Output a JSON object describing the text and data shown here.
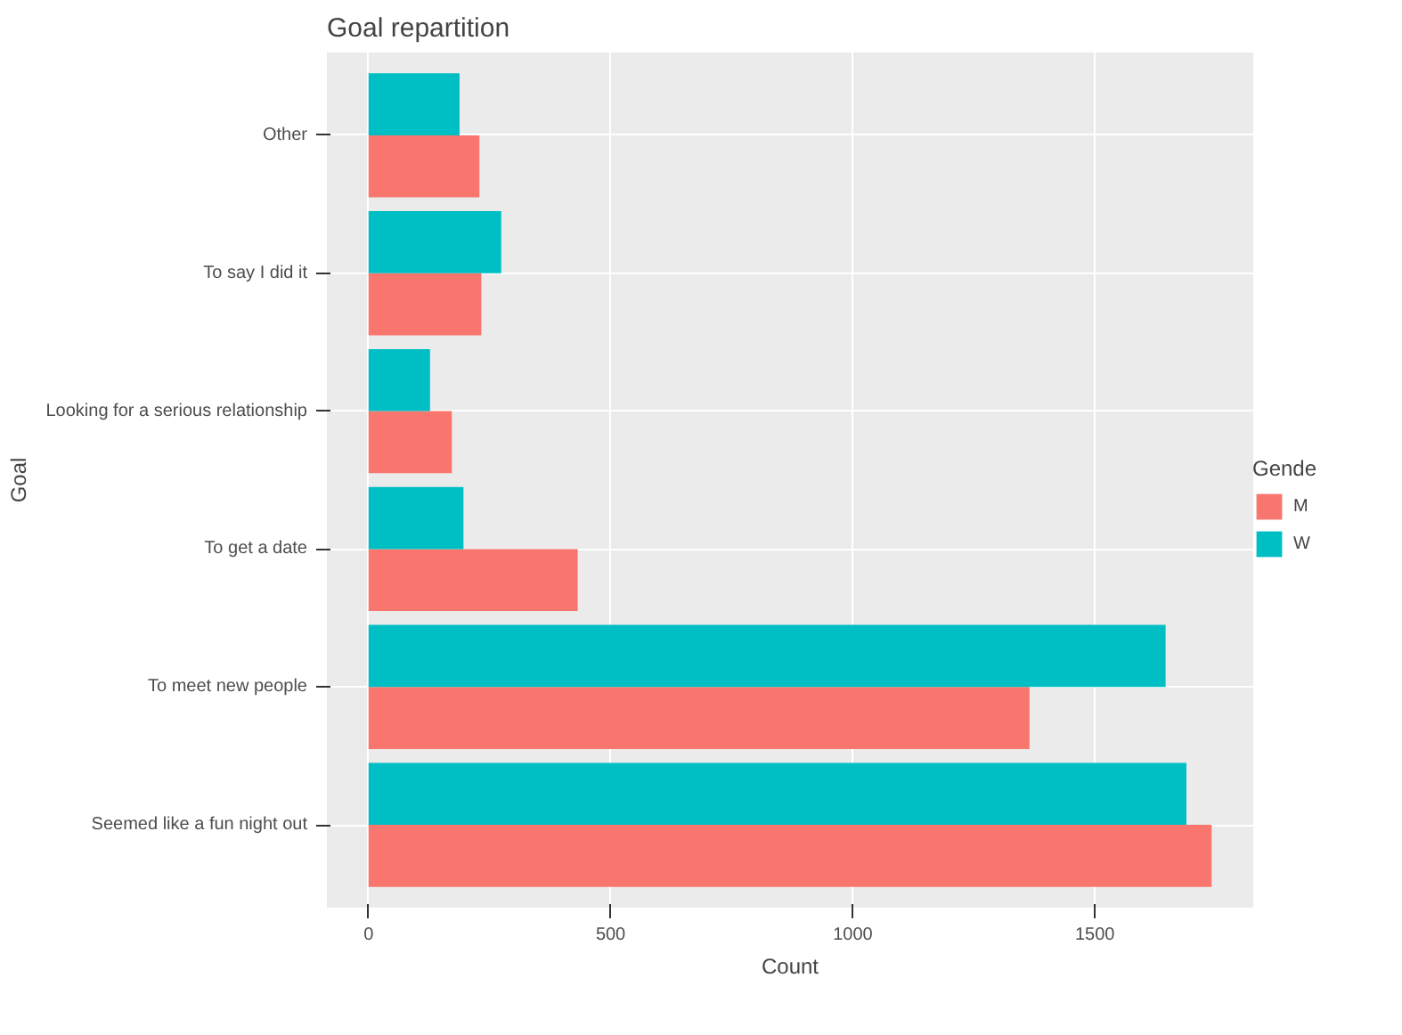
{
  "chart_data": {
    "type": "bar",
    "orientation": "horizontal",
    "title": "Goal repartition",
    "xlabel": "Count",
    "ylabel": "Goal",
    "legend_title": "Gende",
    "legend": "right",
    "grid": true,
    "categories": [
      "Other",
      "To say I did it",
      "Looking for a serious relationship",
      "To get a date",
      "To meet new people",
      "Seemed like a fun night out"
    ],
    "series": [
      {
        "name": "M",
        "color": "#f8766d",
        "values": [
          229,
          233,
          172,
          432,
          1365,
          1741
        ]
      },
      {
        "name": "W",
        "color": "#00bfc4",
        "values": [
          188,
          274,
          127,
          196,
          1646,
          1689
        ]
      }
    ],
    "xlim": [
      -86,
      1827
    ],
    "xticks": [
      0,
      500,
      1000,
      1500
    ]
  }
}
